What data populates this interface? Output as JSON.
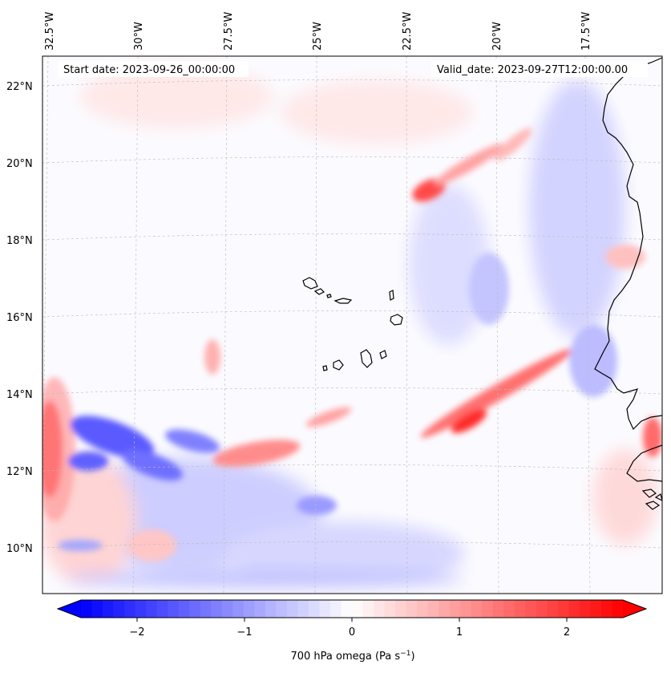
{
  "map": {
    "start_date": "Start date: 2023-09-26_00:00:00",
    "valid_date": "Valid_date: 2023-09-27T12:00:00.00",
    "lon_labels": [
      "32.5°W",
      "30°W",
      "27.5°W",
      "25°W",
      "22.5°W",
      "20°W",
      "17.5°W"
    ],
    "lat_labels": [
      "22°N",
      "20°N",
      "18°N",
      "16°N",
      "14°N",
      "12°N",
      "10°N"
    ],
    "lon_values": [
      -32.5,
      -30,
      -27.5,
      -25,
      -22.5,
      -20,
      -17.5
    ],
    "lat_values": [
      22,
      20,
      18,
      16,
      14,
      12,
      10
    ]
  },
  "colorbar": {
    "ticks": [
      "−2",
      "−1",
      "0",
      "1",
      "2"
    ],
    "tick_values": [
      -2,
      -1,
      0,
      1,
      2
    ],
    "range": [
      -2.5,
      2.5
    ],
    "label": "700 hPa omega (Pa s",
    "label_sup": "−1",
    "label_end": ")",
    "colormap": "bwr",
    "min_color": "#0000ff",
    "mid_color": "#ffffff",
    "max_color": "#ff0000"
  },
  "chart_data": {
    "type": "heatmap",
    "field": "700 hPa omega",
    "units": "Pa s^-1",
    "value_range": [
      -2.5,
      2.5
    ],
    "lon_range": [
      -33,
      -15.5
    ],
    "lat_range": [
      9,
      22.7
    ],
    "notable_features": [
      {
        "name": "strong ascent (negative, blue) cluster",
        "lon": -30.5,
        "lat": 12.4,
        "value": -2.0
      },
      {
        "name": "strong descent (positive, red) band near western edge",
        "lon": -32.8,
        "lat": 12.5,
        "value": 2.5
      },
      {
        "name": "SW-NE descent band",
        "lon": -20.5,
        "lat": 13.0,
        "value": 2.0
      },
      {
        "name": "descent patch",
        "lon": -22.0,
        "lat": 19.3,
        "value": 1.5
      },
      {
        "name": "descent band",
        "lon": -27.0,
        "lat": 12.3,
        "value": 1.3
      }
    ]
  }
}
